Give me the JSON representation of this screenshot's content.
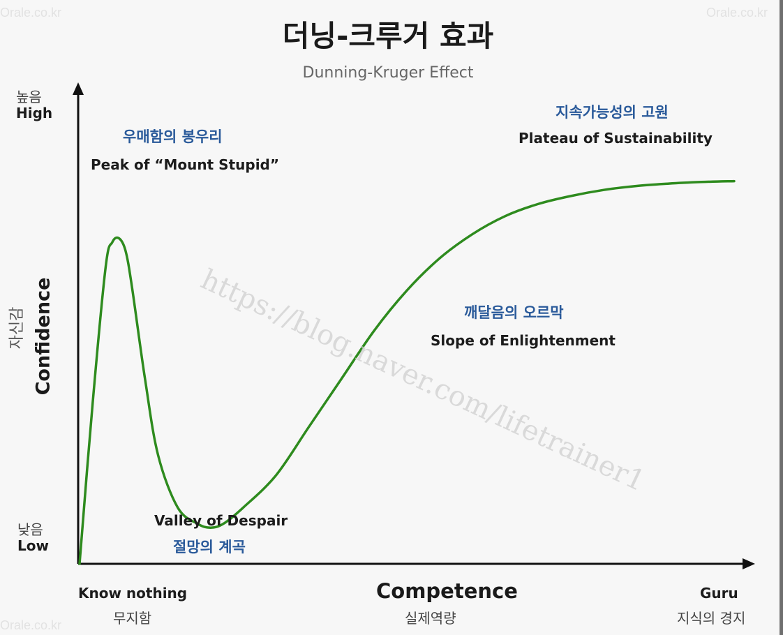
{
  "watermarks": {
    "corner": "Orale.co.kr",
    "diagonal": "https://blog.naver.com/lifetrainer1"
  },
  "chart_data": {
    "type": "line",
    "title": "더닝-크루거 효과",
    "subtitle": "Dunning-Kruger Effect",
    "ylabel": {
      "ko": "자신감",
      "en": "Confidence"
    },
    "xlabel": {
      "en": "Competence",
      "ko": "실제역량"
    },
    "y_ticks": [
      {
        "ko": "높음",
        "en": "High"
      },
      {
        "ko": "낮음",
        "en": "Low"
      }
    ],
    "x_ticks": [
      {
        "en": "Know nothing",
        "ko": "무지함"
      },
      {
        "en": "Guru",
        "ko": "지식의 경지"
      }
    ],
    "xlim": [
      0,
      100
    ],
    "ylim": [
      0,
      100
    ],
    "color": "#2e8b1e",
    "series": [
      {
        "x": [
          0,
          2,
          4,
          5,
          6,
          7,
          8,
          10,
          12,
          15,
          18,
          20,
          22,
          25,
          30,
          35,
          40,
          45,
          50,
          55,
          60,
          65,
          70,
          75,
          80,
          85,
          90,
          95,
          100
        ],
        "y": [
          0,
          40,
          74,
          80,
          81,
          78,
          69,
          46,
          27,
          14,
          10,
          9,
          10,
          14,
          22,
          34,
          46,
          58,
          68,
          76,
          82,
          86.5,
          89.5,
          91.5,
          93,
          94,
          94.6,
          95,
          95.2
        ]
      }
    ],
    "annotations": [
      {
        "ko": "우매함의 봉우리",
        "en": "Peak of “Mount Stupid”"
      },
      {
        "en": "Valley of Despair",
        "ko": "절망의 계곡"
      },
      {
        "ko": "깨달음의 오르막",
        "en": "Slope of Enlightenment"
      },
      {
        "ko": "지속가능성의 고원",
        "en": "Plateau of Sustainability"
      }
    ]
  }
}
